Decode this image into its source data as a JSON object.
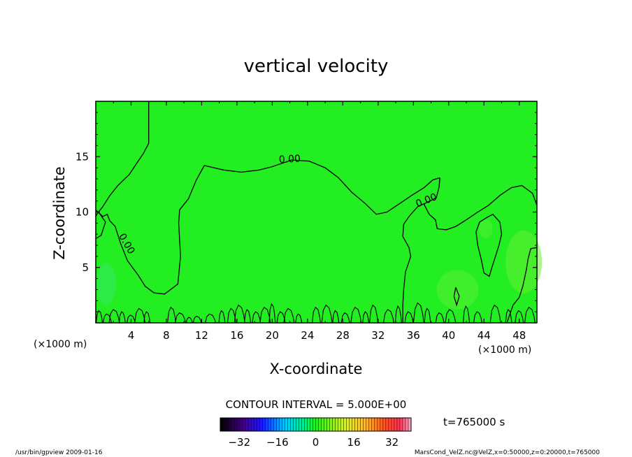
{
  "chart_data": {
    "type": "contour",
    "title": "vertical velocity",
    "xlabel": "X-coordinate",
    "ylabel": "Z-coordinate",
    "x_unit": "(×1000 m)",
    "z_unit": "(×1000 m)",
    "xlim": [
      0,
      50
    ],
    "ylim": [
      0,
      20
    ],
    "x_ticks": [
      4,
      8,
      12,
      16,
      20,
      24,
      28,
      32,
      36,
      40,
      44,
      48
    ],
    "y_ticks": [
      5,
      10,
      15
    ],
    "contour_interval_text": "CONTOUR INTERVAL = 5.000E+00",
    "contour_labels": [
      {
        "text": "0.00",
        "x": 22,
        "z": 14.5
      },
      {
        "text": "0.00",
        "x": 37.6,
        "z": 10.8
      },
      {
        "text": "0.00",
        "x": 3.2,
        "z": 7
      }
    ],
    "time_label": "t=765000 s",
    "colorbar": {
      "range": [
        -40,
        40
      ],
      "ticks": [
        -32,
        -16,
        0,
        16,
        32
      ],
      "tick_labels": [
        "−32",
        "−16",
        "0",
        "16",
        "32"
      ]
    },
    "field_color": "#22ee22",
    "footer_left": "/usr/bin/gpview   2009-01-16",
    "footer_right": "MarsCond_VelZ.nc@VelZ,x=0:50000,z=0:20000,t=765000"
  }
}
